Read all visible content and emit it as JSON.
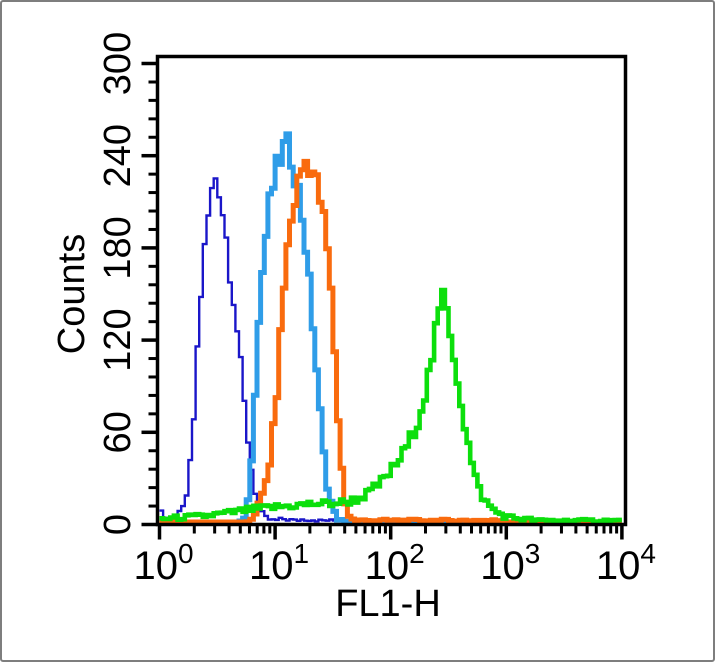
{
  "window": {
    "background": "#ffffff",
    "border_color": "#7e7e7e",
    "axis_color": "#000000"
  },
  "chart_data": {
    "type": "line",
    "subtype": "flow-cytometry-histogram-overlay",
    "title": "",
    "xlabel": "FL1-H",
    "ylabel": "Counts",
    "grid": false,
    "legend": null,
    "x_axis": {
      "scale": "log10",
      "min": 1,
      "max": 10000,
      "decade_exponents": [
        0,
        1,
        2,
        3,
        4
      ],
      "tick_label_base": "10"
    },
    "y_axis": {
      "min": 0,
      "max": 300,
      "major_step": 60,
      "minor_step": 12,
      "tick_labels": [
        "0",
        "60",
        "120",
        "180",
        "240",
        "300"
      ]
    },
    "series": [
      {
        "name": "dark-blue-histogram",
        "color": "#1a16c9",
        "line_width": 2.4,
        "peak": {
          "x": 3.2,
          "counts": 232
        },
        "points": [
          [
            1.0,
            0
          ],
          [
            1.04,
            9
          ],
          [
            1.1,
            1
          ],
          [
            1.3,
            2
          ],
          [
            1.45,
            4
          ],
          [
            1.6,
            9
          ],
          [
            1.72,
            18
          ],
          [
            1.85,
            38
          ],
          [
            2.0,
            72
          ],
          [
            2.1,
            105
          ],
          [
            2.2,
            132
          ],
          [
            2.35,
            162
          ],
          [
            2.55,
            190
          ],
          [
            2.75,
            210
          ],
          [
            2.95,
            222
          ],
          [
            3.1,
            228
          ],
          [
            3.2,
            232
          ],
          [
            3.3,
            215
          ],
          [
            3.5,
            205
          ],
          [
            3.8,
            185
          ],
          [
            4.1,
            162
          ],
          [
            4.5,
            140
          ],
          [
            5.0,
            105
          ],
          [
            5.5,
            72
          ],
          [
            6.0,
            45
          ],
          [
            6.5,
            26
          ],
          [
            7.0,
            14
          ],
          [
            7.6,
            6
          ],
          [
            8.5,
            2
          ],
          [
            10,
            1
          ],
          [
            12,
            2
          ],
          [
            15,
            1
          ],
          [
            19,
            2
          ],
          [
            24,
            1
          ],
          [
            30,
            1
          ],
          [
            40,
            1
          ],
          [
            60,
            1
          ],
          [
            90,
            1
          ],
          [
            120,
            0
          ],
          [
            10000,
            0
          ]
        ]
      },
      {
        "name": "light-blue-histogram",
        "color": "#2f9de8",
        "line_width": 5,
        "peak": {
          "x": 13,
          "counts": 245
        },
        "points": [
          [
            5.0,
            0
          ],
          [
            5.4,
            3
          ],
          [
            5.8,
            12
          ],
          [
            6.1,
            30
          ],
          [
            6.4,
            55
          ],
          [
            6.8,
            95
          ],
          [
            7.2,
            128
          ],
          [
            7.6,
            156
          ],
          [
            8.2,
            182
          ],
          [
            9.0,
            208
          ],
          [
            10,
            226
          ],
          [
            11,
            237
          ],
          [
            12,
            244
          ],
          [
            13,
            245
          ],
          [
            14,
            238
          ],
          [
            15.5,
            222
          ],
          [
            17,
            203
          ],
          [
            18.5,
            180
          ],
          [
            20,
            152
          ],
          [
            21.5,
            126
          ],
          [
            23,
            98
          ],
          [
            24.5,
            72
          ],
          [
            26,
            48
          ],
          [
            27.5,
            32
          ],
          [
            29,
            20
          ],
          [
            31,
            11
          ],
          [
            33,
            5
          ],
          [
            35.5,
            2
          ],
          [
            38,
            1
          ],
          [
            42,
            0
          ],
          [
            10000,
            0
          ]
        ]
      },
      {
        "name": "orange-histogram",
        "color": "#f96b0e",
        "line_width": 5,
        "peak": {
          "x": 18.5,
          "counts": 236
        },
        "points": [
          [
            5.8,
            0
          ],
          [
            6.2,
            2
          ],
          [
            6.8,
            7
          ],
          [
            7.5,
            13
          ],
          [
            8.2,
            23
          ],
          [
            9.0,
            40
          ],
          [
            9.7,
            61
          ],
          [
            10.4,
            87
          ],
          [
            11.1,
            119
          ],
          [
            11.8,
            150
          ],
          [
            12.8,
            178
          ],
          [
            14,
            200
          ],
          [
            15.5,
            218
          ],
          [
            17,
            230
          ],
          [
            18.5,
            236
          ],
          [
            20,
            234
          ],
          [
            21.5,
            228
          ],
          [
            23.5,
            218
          ],
          [
            25.5,
            205
          ],
          [
            27.5,
            188
          ],
          [
            29.5,
            165
          ],
          [
            31,
            142
          ],
          [
            32.5,
            118
          ],
          [
            34,
            90
          ],
          [
            35.5,
            63
          ],
          [
            37,
            43
          ],
          [
            38.8,
            25
          ],
          [
            40.5,
            14
          ],
          [
            42.5,
            6
          ],
          [
            45,
            2
          ],
          [
            50,
            1
          ],
          [
            70,
            1
          ],
          [
            150,
            1
          ],
          [
            500,
            1
          ],
          [
            850,
            1
          ],
          [
            950,
            0
          ],
          [
            10000,
            0
          ]
        ]
      },
      {
        "name": "green-histogram",
        "color": "#0cdf0c",
        "line_width": 4.6,
        "peak": {
          "x": 283,
          "counts": 147
        },
        "points": [
          [
            1.0,
            2
          ],
          [
            1.6,
            3
          ],
          [
            2.5,
            4
          ],
          [
            4.0,
            6
          ],
          [
            6.0,
            8
          ],
          [
            8.0,
            9
          ],
          [
            11,
            10
          ],
          [
            16,
            11
          ],
          [
            22,
            12
          ],
          [
            30,
            12
          ],
          [
            40,
            13
          ],
          [
            52,
            15
          ],
          [
            65,
            19
          ],
          [
            80,
            25
          ],
          [
            100,
            33
          ],
          [
            125,
            43
          ],
          [
            150,
            55
          ],
          [
            175,
            68
          ],
          [
            200,
            85
          ],
          [
            225,
            105
          ],
          [
            250,
            127
          ],
          [
            268,
            140
          ],
          [
            283,
            147
          ],
          [
            300,
            142
          ],
          [
            320,
            131
          ],
          [
            345,
            114
          ],
          [
            375,
            96
          ],
          [
            410,
            77
          ],
          [
            450,
            58
          ],
          [
            495,
            41
          ],
          [
            540,
            29
          ],
          [
            600,
            19
          ],
          [
            670,
            13
          ],
          [
            750,
            9
          ],
          [
            850,
            6
          ],
          [
            950,
            4
          ],
          [
            1100,
            3
          ],
          [
            1400,
            2
          ],
          [
            2000,
            1
          ],
          [
            3500,
            1
          ],
          [
            6000,
            1
          ],
          [
            10000,
            1
          ]
        ]
      }
    ]
  }
}
